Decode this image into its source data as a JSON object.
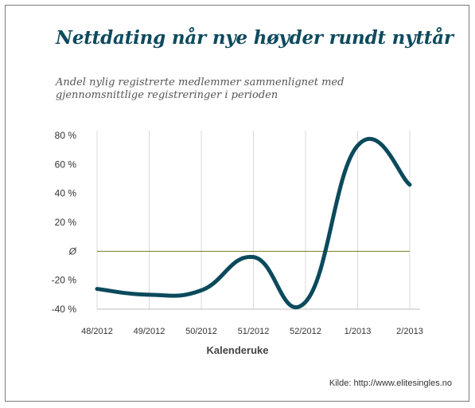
{
  "title": "Nettdating når nye høyder rundt nyttår",
  "subtitle": [
    "Andel nylig registrerte medlemmer sammenlignet med",
    "gjennomsnittlige registreringer i perioden"
  ],
  "xlabel": "Kalenderuke",
  "source": "Kilde: http://www.elitesingles.no",
  "colors": {
    "line": "#0b4a5c",
    "baseline": "#7a7d1e",
    "grid": "#d9d9d9",
    "title": "#0e4a5e"
  },
  "chart_data": {
    "type": "line",
    "title": "Nettdating når nye høyder rundt nyttår",
    "xlabel": "Kalenderuke",
    "ylabel": "",
    "categories": [
      "48/2012",
      "49/2012",
      "50/2012",
      "51/2012",
      "52/2012",
      "1/2013",
      "2/2013"
    ],
    "y_ticks": [
      {
        "value": 80,
        "label": "80 %"
      },
      {
        "value": 60,
        "label": "60 %"
      },
      {
        "value": 40,
        "label": "40 %"
      },
      {
        "value": 20,
        "label": "20 %"
      },
      {
        "value": 0,
        "label": "Ø"
      },
      {
        "value": -20,
        "label": "-20 %"
      },
      {
        "value": -40,
        "label": "-40 %"
      }
    ],
    "ylim": [
      -40,
      80
    ],
    "grid": true,
    "series": [
      {
        "values": [
          -26,
          -30,
          -27,
          -4,
          -35,
          73,
          46
        ]
      }
    ]
  }
}
